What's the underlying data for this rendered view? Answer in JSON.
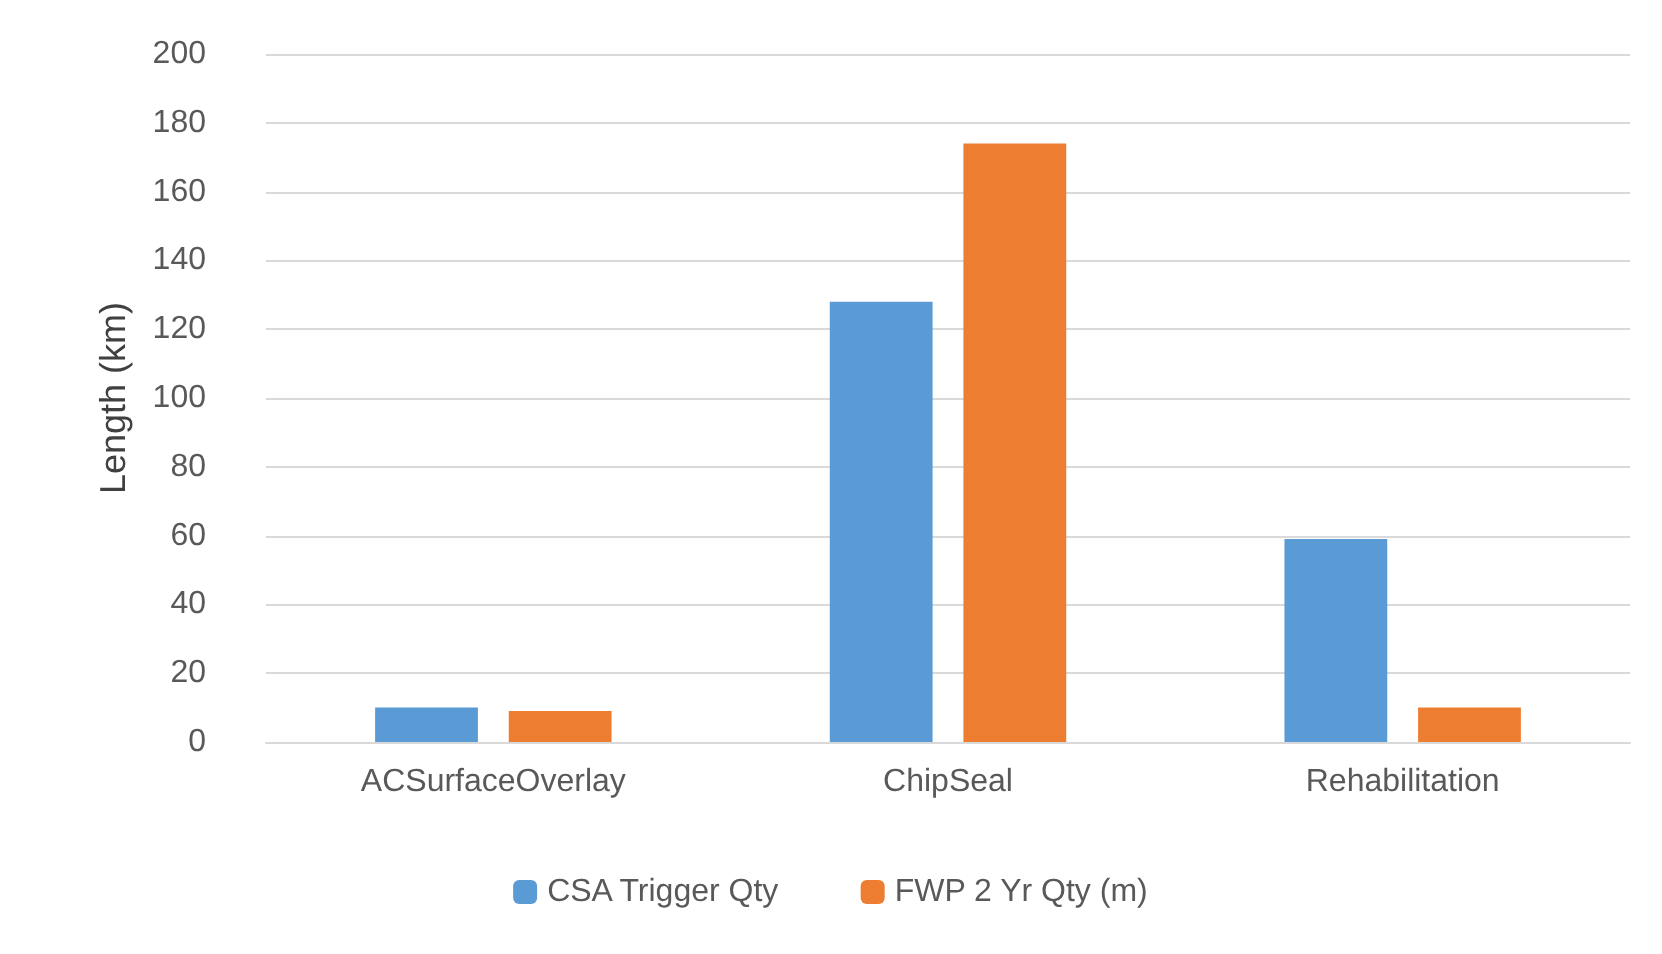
{
  "chart_data": {
    "type": "bar",
    "ylabel": "Length (km)",
    "categories": [
      "ACSurfaceOverlay",
      "ChipSeal",
      "Rehabilitation"
    ],
    "series": [
      {
        "name": "CSA Trigger Qty",
        "color": "#5b9bd5",
        "values": [
          10,
          128,
          59
        ]
      },
      {
        "name": "FWP 2 Yr Qty (m)",
        "color": "#ed7d31",
        "values": [
          9,
          174,
          10
        ]
      }
    ],
    "ylim": [
      0,
      200
    ],
    "yticks": [
      0,
      20,
      40,
      60,
      80,
      100,
      120,
      140,
      160,
      180,
      200
    ],
    "grid": "y",
    "legend": "bottom"
  }
}
